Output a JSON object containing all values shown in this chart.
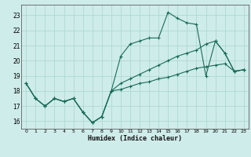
{
  "xlabel": "Humidex (Indice chaleur)",
  "bg_color": "#ceecea",
  "grid_color": "#aed8d4",
  "line_color": "#1a6b5a",
  "xlim": [
    -0.5,
    23.5
  ],
  "ylim": [
    15.5,
    23.7
  ],
  "xticks": [
    0,
    1,
    2,
    3,
    4,
    5,
    6,
    7,
    8,
    9,
    10,
    11,
    12,
    13,
    14,
    15,
    16,
    17,
    18,
    19,
    20,
    21,
    22,
    23
  ],
  "yticks": [
    16,
    17,
    18,
    19,
    20,
    21,
    22,
    23
  ],
  "line1_x": [
    0,
    1,
    2,
    3,
    4,
    5,
    6,
    7,
    8,
    9,
    10,
    11,
    12,
    13,
    14,
    15,
    16,
    17,
    18,
    19,
    20,
    21,
    22,
    23
  ],
  "line1_y": [
    18.5,
    17.5,
    17.0,
    17.5,
    17.3,
    17.5,
    16.6,
    15.9,
    16.3,
    18.0,
    20.3,
    21.1,
    21.3,
    21.5,
    21.5,
    23.2,
    22.8,
    22.5,
    22.4,
    19.0,
    21.3,
    20.5,
    19.3,
    19.4
  ],
  "line2_x": [
    0,
    1,
    2,
    3,
    4,
    5,
    6,
    7,
    8,
    9,
    10,
    11,
    12,
    13,
    14,
    15,
    16,
    17,
    18,
    19,
    20,
    21,
    22,
    23
  ],
  "line2_y": [
    18.5,
    17.5,
    17.0,
    17.5,
    17.3,
    17.5,
    16.6,
    15.9,
    16.3,
    18.0,
    18.5,
    18.8,
    19.1,
    19.4,
    19.7,
    20.0,
    20.3,
    20.5,
    20.7,
    21.1,
    21.3,
    20.5,
    19.3,
    19.4
  ],
  "line3_x": [
    0,
    1,
    2,
    3,
    4,
    5,
    6,
    7,
    8,
    9,
    10,
    11,
    12,
    13,
    14,
    15,
    16,
    17,
    18,
    19,
    20,
    21,
    22,
    23
  ],
  "line3_y": [
    18.5,
    17.5,
    17.0,
    17.5,
    17.3,
    17.5,
    16.6,
    15.9,
    16.3,
    18.0,
    18.1,
    18.3,
    18.5,
    18.6,
    18.8,
    18.9,
    19.1,
    19.3,
    19.5,
    19.6,
    19.7,
    19.8,
    19.3,
    19.4
  ]
}
